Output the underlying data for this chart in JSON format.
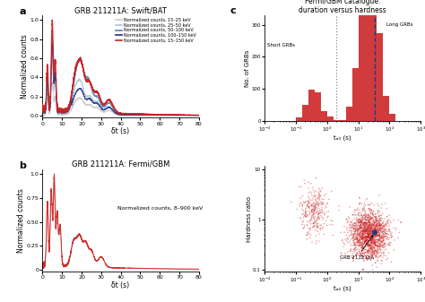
{
  "title_a": "GRB 211211A: Swift/BAT",
  "title_b": "GRB 211211A: Fermi/GBM",
  "title_c": "Fermi/GBM catalogue:\nduration versus hardness",
  "ylabel_a": "Normalized counts",
  "ylabel_b": "Normalized counts",
  "xlabel_ab": "δt (s)",
  "xlabel_c": "tₐ₀ (s)",
  "ylabel_c_top": "No. of GRBs",
  "ylabel_c_bot": "Hardness ratio",
  "legend_labels": [
    "Normalized counts, 15–25 keV",
    "Normalized counts, 25–50 keV",
    "Normalized counts, 50–100 keV",
    "Normalized counts, 100–150 keV",
    "Normalized counts, 15–150 keV"
  ],
  "legend_colors": [
    "#c8c8c8",
    "#a8c4d8",
    "#5080b8",
    "#1a2f80",
    "#cc2020"
  ],
  "red_color": "#cc2020",
  "blue_marker_color": "#1a4080",
  "annotation_text": "GRB 211211A",
  "grb_t90": 34.0,
  "grb_hardness": 0.55,
  "short_grb_label": "Short GRBs",
  "long_grb_label": "Long GRBs",
  "dotted_line_x": 2.0,
  "dashed_line_x": 34.0,
  "xlim_t90": [
    0.01,
    1000
  ],
  "ylim_t90": [
    0,
    330
  ],
  "xlim_scatter": [
    0.01,
    1000
  ],
  "ylim_scatter": [
    0.09,
    12
  ],
  "background_color": "#ffffff",
  "xlim_ab": [
    0,
    80
  ],
  "ylim_a": [
    -0.02,
    1.05
  ],
  "ylim_b": [
    -0.02,
    1.05
  ]
}
